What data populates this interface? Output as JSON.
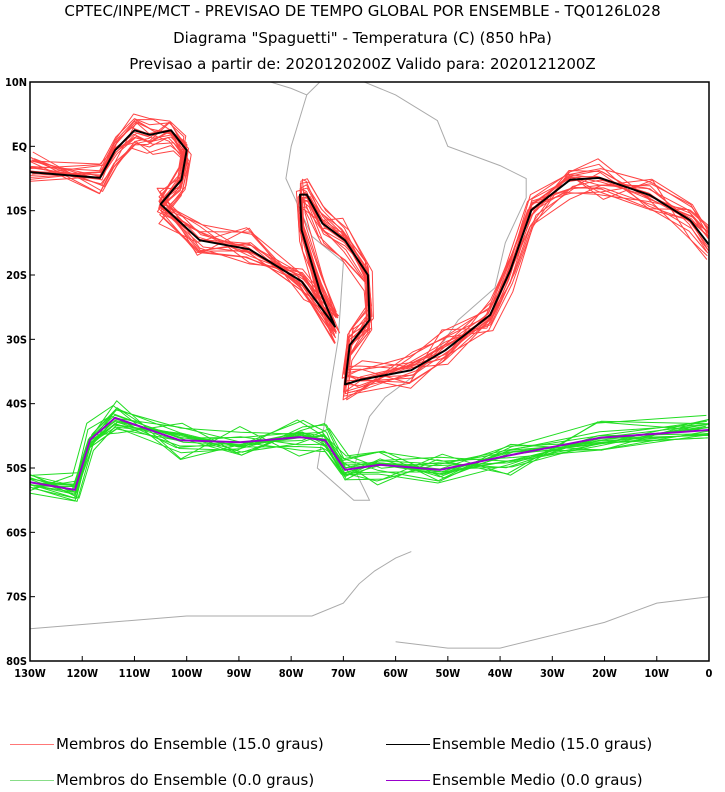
{
  "titles": {
    "line1": "CPTEC/INPE/MCT - PREVISAO DE TEMPO GLOBAL POR ENSEMBLE - TQ0126L028",
    "line2": "Diagrama \"Spaguetti\" - Temperatura (C) (850 hPa)",
    "line3": "Previsao a partir de: 2020120200Z  Valido para: 2020121200Z"
  },
  "chart_data": {
    "type": "line",
    "title": "Diagrama \"Spaguetti\" - Temperatura (C) (850 hPa)",
    "xlim": [
      -130,
      0
    ],
    "ylim": [
      -80,
      10
    ],
    "xticks": [
      {
        "v": -130,
        "label": "130W"
      },
      {
        "v": -120,
        "label": "120W"
      },
      {
        "v": -110,
        "label": "110W"
      },
      {
        "v": -100,
        "label": "100W"
      },
      {
        "v": -90,
        "label": "90W"
      },
      {
        "v": -80,
        "label": "80W"
      },
      {
        "v": -70,
        "label": "70W"
      },
      {
        "v": -60,
        "label": "60W"
      },
      {
        "v": -50,
        "label": "50W"
      },
      {
        "v": -40,
        "label": "40W"
      },
      {
        "v": -30,
        "label": "30W"
      },
      {
        "v": -20,
        "label": "20W"
      },
      {
        "v": -10,
        "label": "10W"
      },
      {
        "v": 0,
        "label": "0"
      }
    ],
    "yticks": [
      {
        "v": 10,
        "label": "10N"
      },
      {
        "v": 0,
        "label": "EQ"
      },
      {
        "v": -10,
        "label": "10S"
      },
      {
        "v": -20,
        "label": "20S"
      },
      {
        "v": -30,
        "label": "30S"
      },
      {
        "v": -40,
        "label": "40S"
      },
      {
        "v": -50,
        "label": "50S"
      },
      {
        "v": -60,
        "label": "60S"
      },
      {
        "v": -70,
        "label": "70S"
      },
      {
        "v": -80,
        "label": "80S"
      }
    ],
    "series": [
      {
        "name": "Ensemble Medio (15.0 graus)",
        "color": "#000000",
        "points": [
          [
            -130,
            -4
          ],
          [
            -116.6,
            -4.9
          ],
          [
            -113.7,
            -0.6
          ],
          [
            -110,
            2.5
          ],
          [
            -107,
            1.8
          ],
          [
            -103,
            2.5
          ],
          [
            -100,
            -0.6
          ],
          [
            -101,
            -5.2
          ],
          [
            -105,
            -9
          ],
          [
            -97.5,
            -14.6
          ],
          [
            -88,
            -16
          ],
          [
            -78,
            -21
          ],
          [
            -71.6,
            -28
          ],
          [
            -74.5,
            -22.5
          ],
          [
            -78,
            -13
          ],
          [
            -78.3,
            -7.5
          ],
          [
            -77,
            -7.5
          ],
          [
            -74,
            -12
          ],
          [
            -69.7,
            -14.6
          ],
          [
            -65.3,
            -20
          ],
          [
            -65,
            -27
          ],
          [
            -68.8,
            -30.9
          ],
          [
            -69.7,
            -37
          ],
          [
            -66.8,
            -36.3
          ],
          [
            -57,
            -34.8
          ],
          [
            -50.5,
            -31.7
          ],
          [
            -41.9,
            -26.2
          ],
          [
            -38,
            -19.2
          ],
          [
            -34,
            -9.9
          ],
          [
            -26.6,
            -5.2
          ],
          [
            -20.9,
            -4.9
          ],
          [
            -11.3,
            -7.6
          ],
          [
            -3.6,
            -11.5
          ],
          [
            0,
            -15.3
          ]
        ]
      },
      {
        "name": "Ensemble Medio (0.0 graus)",
        "color": "#9900cc",
        "points": [
          [
            -130,
            -52.2
          ],
          [
            -121.4,
            -53.4
          ],
          [
            -118.5,
            -45.6
          ],
          [
            -113.7,
            -42.2
          ],
          [
            -101.3,
            -45.7
          ],
          [
            -89.8,
            -46
          ],
          [
            -78.3,
            -45.2
          ],
          [
            -73.5,
            -45.7
          ],
          [
            -69.7,
            -50.3
          ],
          [
            -63,
            -49.5
          ],
          [
            -51.5,
            -50.3
          ],
          [
            -38,
            -48
          ],
          [
            -20.9,
            -45.3
          ],
          [
            0,
            -44.1
          ]
        ]
      }
    ],
    "member_series": [
      {
        "name": "Membros do Ensemble (15.0 graus)",
        "color": "#ff4444",
        "follows": "Ensemble Medio (15.0 graus)"
      },
      {
        "name": "Membros do Ensemble (0.0 graus)",
        "color": "#22dd22",
        "follows": "Ensemble Medio (0.0 graus)"
      }
    ]
  },
  "legend": [
    {
      "label": "Membros do Ensemble (15.0 graus)",
      "color": "#ff7777"
    },
    {
      "label": "Ensemble Medio (15.0 graus)",
      "color": "#000000"
    },
    {
      "label": "Membros do Ensemble (0.0 graus)",
      "color": "#88dd88"
    },
    {
      "label": "Ensemble Medio (0.0 graus)",
      "color": "#9900cc"
    }
  ]
}
